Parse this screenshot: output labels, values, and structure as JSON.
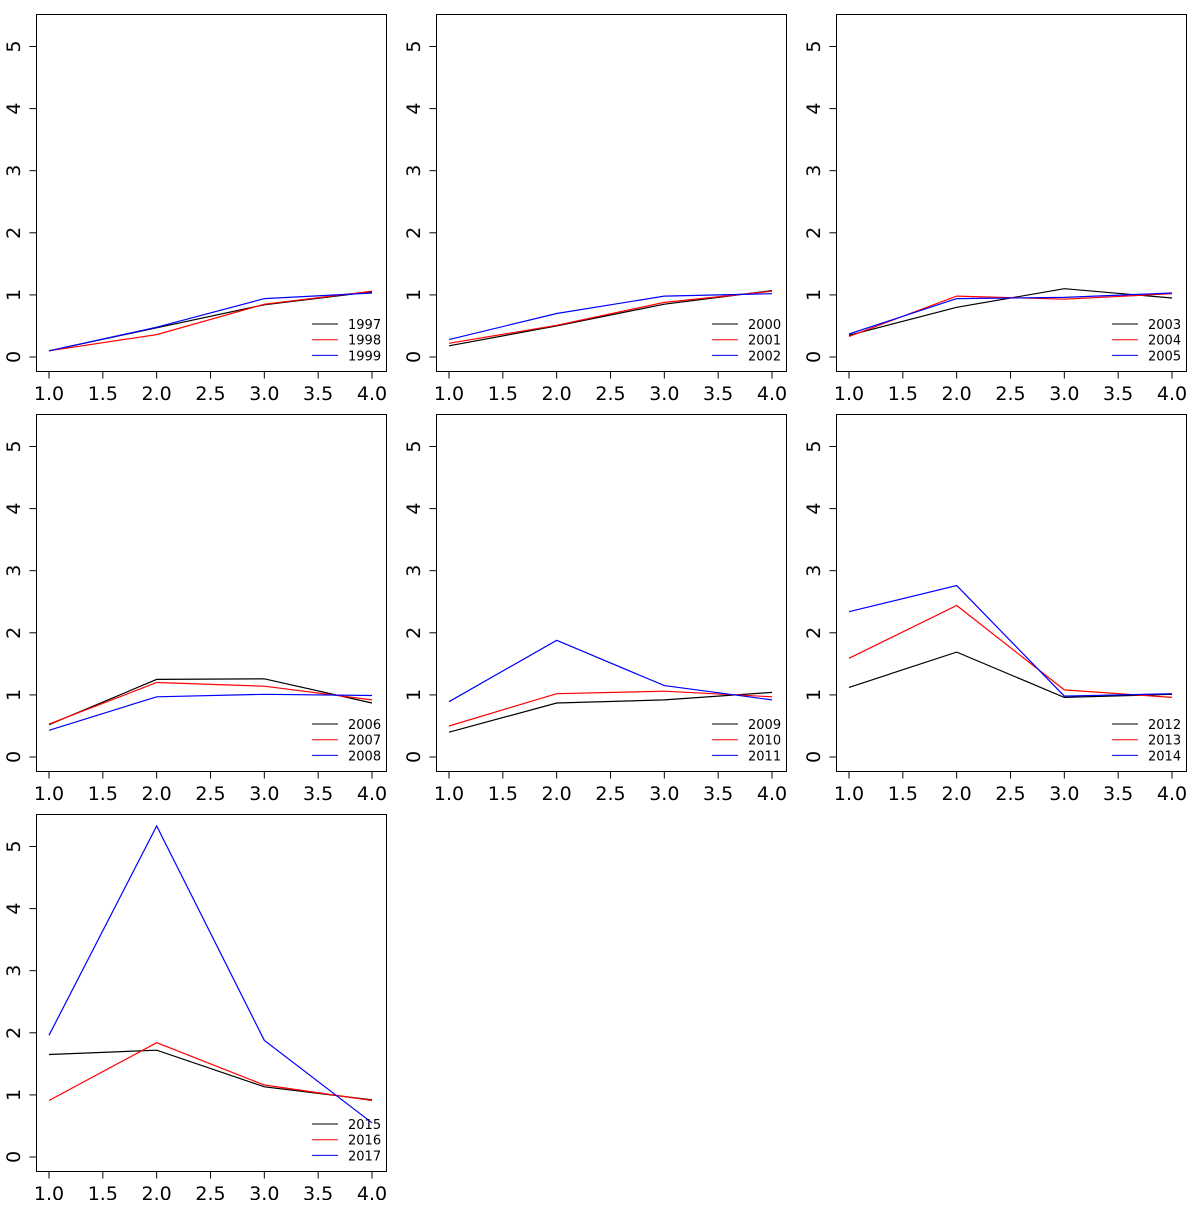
{
  "colors": [
    "#000000",
    "#ff0000",
    "#0000ff"
  ],
  "chart_data": [
    {
      "type": "line",
      "title": "",
      "xlabel": "",
      "ylabel": "",
      "xlim": [
        1.0,
        4.0
      ],
      "ylim": [
        0,
        5.3
      ],
      "x": [
        1.0,
        2.0,
        3.0,
        4.0
      ],
      "xticks": [
        "1.0",
        "1.5",
        "2.0",
        "2.5",
        "3.0",
        "3.5",
        "4.0"
      ],
      "yticks": [
        "0",
        "1",
        "2",
        "3",
        "4",
        "5"
      ],
      "legend_position": "bottom-right",
      "series": [
        {
          "name": "1997",
          "color": "#000000",
          "values": [
            0.1,
            0.47,
            0.84,
            1.05
          ]
        },
        {
          "name": "1998",
          "color": "#ff0000",
          "values": [
            0.1,
            0.36,
            0.85,
            1.06
          ]
        },
        {
          "name": "1999",
          "color": "#0000ff",
          "values": [
            0.1,
            0.48,
            0.94,
            1.03
          ]
        }
      ]
    },
    {
      "type": "line",
      "title": "",
      "xlabel": "",
      "ylabel": "",
      "xlim": [
        1.0,
        4.0
      ],
      "ylim": [
        0,
        5.3
      ],
      "x": [
        1.0,
        2.0,
        3.0,
        4.0
      ],
      "xticks": [
        "1.0",
        "1.5",
        "2.0",
        "2.5",
        "3.0",
        "3.5",
        "4.0"
      ],
      "yticks": [
        "0",
        "1",
        "2",
        "3",
        "4",
        "5"
      ],
      "legend_position": "bottom-right",
      "series": [
        {
          "name": "2000",
          "color": "#000000",
          "values": [
            0.18,
            0.5,
            0.85,
            1.07
          ]
        },
        {
          "name": "2001",
          "color": "#ff0000",
          "values": [
            0.22,
            0.51,
            0.88,
            1.06
          ]
        },
        {
          "name": "2002",
          "color": "#0000ff",
          "values": [
            0.28,
            0.7,
            0.98,
            1.02
          ]
        }
      ]
    },
    {
      "type": "line",
      "title": "",
      "xlabel": "",
      "ylabel": "",
      "xlim": [
        1.0,
        4.0
      ],
      "ylim": [
        0,
        5.3
      ],
      "x": [
        1.0,
        2.0,
        3.0,
        4.0
      ],
      "xticks": [
        "1.0",
        "1.5",
        "2.0",
        "2.5",
        "3.0",
        "3.5",
        "4.0"
      ],
      "yticks": [
        "0",
        "1",
        "2",
        "3",
        "4",
        "5"
      ],
      "legend_position": "bottom-right",
      "series": [
        {
          "name": "2003",
          "color": "#000000",
          "values": [
            0.35,
            0.8,
            1.1,
            0.95
          ]
        },
        {
          "name": "2004",
          "color": "#ff0000",
          "values": [
            0.33,
            0.98,
            0.93,
            1.02
          ]
        },
        {
          "name": "2005",
          "color": "#0000ff",
          "values": [
            0.37,
            0.94,
            0.96,
            1.03
          ]
        }
      ]
    },
    {
      "type": "line",
      "title": "",
      "xlabel": "",
      "ylabel": "",
      "xlim": [
        1.0,
        4.0
      ],
      "ylim": [
        0,
        5.3
      ],
      "x": [
        1.0,
        2.0,
        3.0,
        4.0
      ],
      "xticks": [
        "1.0",
        "1.5",
        "2.0",
        "2.5",
        "3.0",
        "3.5",
        "4.0"
      ],
      "yticks": [
        "0",
        "1",
        "2",
        "3",
        "4",
        "5"
      ],
      "legend_position": "bottom-right",
      "series": [
        {
          "name": "2006",
          "color": "#000000",
          "values": [
            0.52,
            1.25,
            1.26,
            0.87
          ]
        },
        {
          "name": "2007",
          "color": "#ff0000",
          "values": [
            0.53,
            1.2,
            1.14,
            0.92
          ]
        },
        {
          "name": "2008",
          "color": "#0000ff",
          "values": [
            0.43,
            0.97,
            1.01,
            0.99
          ]
        }
      ]
    },
    {
      "type": "line",
      "title": "",
      "xlabel": "",
      "ylabel": "",
      "xlim": [
        1.0,
        4.0
      ],
      "ylim": [
        0,
        5.3
      ],
      "x": [
        1.0,
        2.0,
        3.0,
        4.0
      ],
      "xticks": [
        "1.0",
        "1.5",
        "2.0",
        "2.5",
        "3.0",
        "3.5",
        "4.0"
      ],
      "yticks": [
        "0",
        "1",
        "2",
        "3",
        "4",
        "5"
      ],
      "legend_position": "bottom-right",
      "series": [
        {
          "name": "2009",
          "color": "#000000",
          "values": [
            0.4,
            0.87,
            0.92,
            1.04
          ]
        },
        {
          "name": "2010",
          "color": "#ff0000",
          "values": [
            0.5,
            1.02,
            1.06,
            0.97
          ]
        },
        {
          "name": "2011",
          "color": "#0000ff",
          "values": [
            0.89,
            1.88,
            1.15,
            0.92
          ]
        }
      ]
    },
    {
      "type": "line",
      "title": "",
      "xlabel": "",
      "ylabel": "",
      "xlim": [
        1.0,
        4.0
      ],
      "ylim": [
        0,
        5.3
      ],
      "x": [
        1.0,
        2.0,
        3.0,
        4.0
      ],
      "xticks": [
        "1.0",
        "1.5",
        "2.0",
        "2.5",
        "3.0",
        "3.5",
        "4.0"
      ],
      "yticks": [
        "0",
        "1",
        "2",
        "3",
        "4",
        "5"
      ],
      "legend_position": "bottom-right",
      "series": [
        {
          "name": "2012",
          "color": "#000000",
          "values": [
            1.12,
            1.69,
            0.96,
            1.01
          ]
        },
        {
          "name": "2013",
          "color": "#ff0000",
          "values": [
            1.59,
            2.44,
            1.08,
            0.96
          ]
        },
        {
          "name": "2014",
          "color": "#0000ff",
          "values": [
            2.34,
            2.76,
            0.98,
            1.02
          ]
        }
      ]
    },
    {
      "type": "line",
      "title": "",
      "xlabel": "",
      "ylabel": "",
      "xlim": [
        1.0,
        4.0
      ],
      "ylim": [
        0,
        5.3
      ],
      "x": [
        1.0,
        2.0,
        3.0,
        4.0
      ],
      "xticks": [
        "1.0",
        "1.5",
        "2.0",
        "2.5",
        "3.0",
        "3.5",
        "4.0"
      ],
      "yticks": [
        "0",
        "1",
        "2",
        "3",
        "4",
        "5"
      ],
      "legend_position": "bottom-right",
      "series": [
        {
          "name": "2015",
          "color": "#000000",
          "values": [
            1.65,
            1.72,
            1.13,
            0.92
          ]
        },
        {
          "name": "2016",
          "color": "#ff0000",
          "values": [
            0.91,
            1.84,
            1.16,
            0.91
          ]
        },
        {
          "name": "2017",
          "color": "#0000ff",
          "values": [
            1.96,
            5.33,
            1.88,
            0.55
          ]
        }
      ]
    }
  ]
}
